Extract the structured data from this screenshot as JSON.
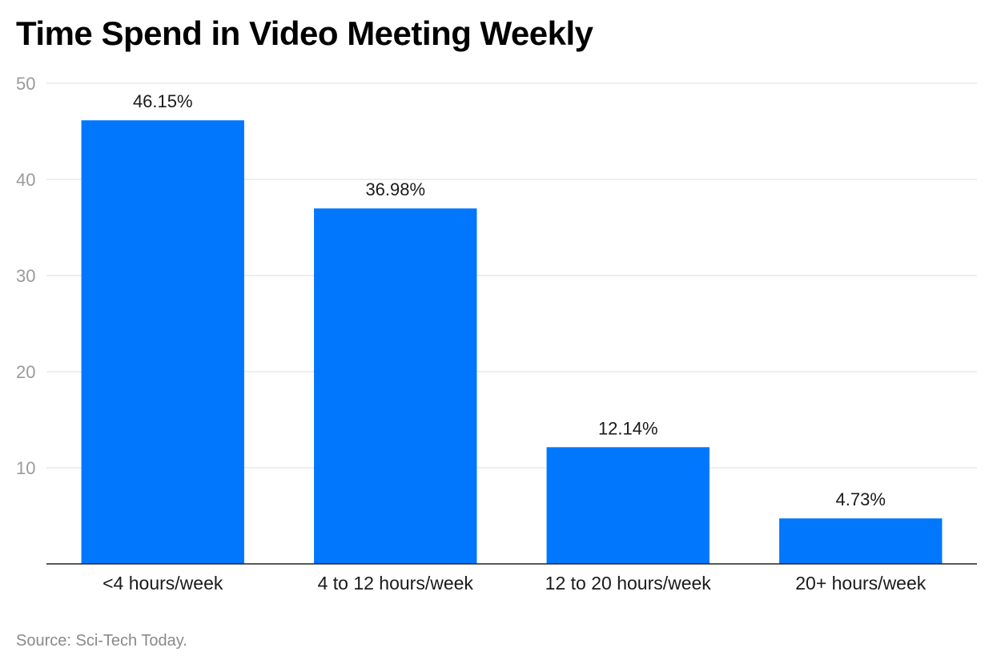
{
  "chart_data": {
    "type": "bar",
    "title": "Time Spend in Video Meeting Weekly",
    "categories": [
      "<4 hours/week",
      "4 to 12 hours/week",
      "12 to 20 hours/week",
      "20+ hours/week"
    ],
    "values": [
      46.15,
      36.98,
      12.14,
      4.73
    ],
    "value_labels": [
      "46.15%",
      "36.98%",
      "12.14%",
      "4.73%"
    ],
    "yticks": [
      10,
      20,
      30,
      40,
      50
    ],
    "ylim": [
      0,
      50
    ],
    "xlabel": "",
    "ylabel": "",
    "grid": true,
    "legend": "none",
    "bar_color": "#0177fe",
    "source": "Source: Sci-Tech Today."
  }
}
